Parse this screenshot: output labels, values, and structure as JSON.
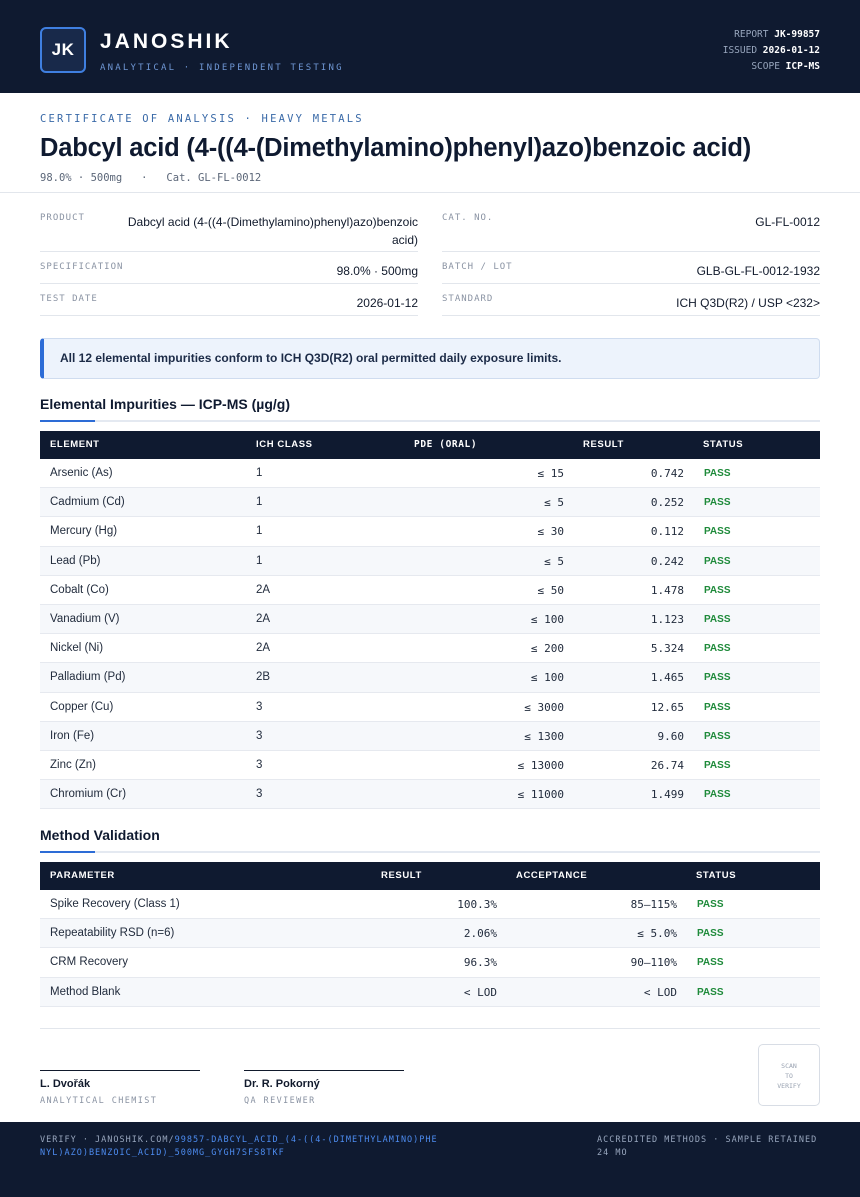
{
  "header": {
    "logo_text": "JK",
    "brand": "JANOSHIK",
    "tagline": "ANALYTICAL · INDEPENDENT TESTING",
    "meta": [
      {
        "label": "REPORT",
        "value": "JK-99857"
      },
      {
        "label": "ISSUED",
        "value": "2026-01-12"
      },
      {
        "label": "SCOPE",
        "value": "ICP-MS"
      }
    ]
  },
  "title_block": {
    "kicker": "CERTIFICATE OF ANALYSIS · HEAVY METALS",
    "title": "Dabcyl acid (4-((4-(Dimethylamino)phenyl)azo)benzoic acid)",
    "subtitle": "98.0% · 500mg   ·   Cat. GL-FL-0012"
  },
  "info": {
    "product": {
      "label": "PRODUCT",
      "value": "Dabcyl acid (4-((4-(Dimethylamino)phenyl)azo)benzoic acid)"
    },
    "cat_no": {
      "label": "CAT. NO.",
      "value": "GL-FL-0012"
    },
    "specification": {
      "label": "SPECIFICATION",
      "value": "98.0% · 500mg"
    },
    "batch": {
      "label": "BATCH / LOT",
      "value": "GLB-GL-FL-0012-1932"
    },
    "test_date": {
      "label": "TEST DATE",
      "value": "2026-01-12"
    },
    "standard": {
      "label": "STANDARD",
      "value": "ICH Q3D(R2) / USP <232>"
    }
  },
  "notice": "All 12 elemental impurities conform to ICH Q3D(R2) oral permitted daily exposure limits.",
  "impurities": {
    "title": "Elemental Impurities — ICP-MS (µg/g)",
    "headers": {
      "element": "ELEMENT",
      "ich_class": "ICH CLASS",
      "pde": "PDE (ORAL)",
      "result": "RESULT",
      "status": "STATUS"
    },
    "rows": [
      {
        "element": "Arsenic (As)",
        "ich_class": "1",
        "pde": "≤ 15",
        "result": "0.742",
        "status": "PASS"
      },
      {
        "element": "Cadmium (Cd)",
        "ich_class": "1",
        "pde": "≤ 5",
        "result": "0.252",
        "status": "PASS"
      },
      {
        "element": "Mercury (Hg)",
        "ich_class": "1",
        "pde": "≤ 30",
        "result": "0.112",
        "status": "PASS"
      },
      {
        "element": "Lead (Pb)",
        "ich_class": "1",
        "pde": "≤ 5",
        "result": "0.242",
        "status": "PASS"
      },
      {
        "element": "Cobalt (Co)",
        "ich_class": "2A",
        "pde": "≤ 50",
        "result": "1.478",
        "status": "PASS"
      },
      {
        "element": "Vanadium (V)",
        "ich_class": "2A",
        "pde": "≤ 100",
        "result": "1.123",
        "status": "PASS"
      },
      {
        "element": "Nickel (Ni)",
        "ich_class": "2A",
        "pde": "≤ 200",
        "result": "5.324",
        "status": "PASS"
      },
      {
        "element": "Palladium (Pd)",
        "ich_class": "2B",
        "pde": "≤ 100",
        "result": "1.465",
        "status": "PASS"
      },
      {
        "element": "Copper (Cu)",
        "ich_class": "3",
        "pde": "≤ 3000",
        "result": "12.65",
        "status": "PASS"
      },
      {
        "element": "Iron (Fe)",
        "ich_class": "3",
        "pde": "≤ 1300",
        "result": "9.60",
        "status": "PASS"
      },
      {
        "element": "Zinc (Zn)",
        "ich_class": "3",
        "pde": "≤ 13000",
        "result": "26.74",
        "status": "PASS"
      },
      {
        "element": "Chromium (Cr)",
        "ich_class": "3",
        "pde": "≤ 11000",
        "result": "1.499",
        "status": "PASS"
      }
    ]
  },
  "validation": {
    "title": "Method Validation",
    "headers": {
      "parameter": "PARAMETER",
      "result": "RESULT",
      "acceptance": "ACCEPTANCE",
      "status": "STATUS"
    },
    "rows": [
      {
        "parameter": "Spike Recovery (Class 1)",
        "result": "100.3%",
        "acceptance": "85–115%",
        "status": "PASS"
      },
      {
        "parameter": "Repeatability RSD (n=6)",
        "result": "2.06%",
        "acceptance": "≤ 5.0%",
        "status": "PASS"
      },
      {
        "parameter": "CRM Recovery",
        "result": "96.3%",
        "acceptance": "90–110%",
        "status": "PASS"
      },
      {
        "parameter": "Method Blank",
        "result": "< LOD",
        "acceptance": "< LOD",
        "status": "PASS"
      }
    ]
  },
  "signatures": [
    {
      "name": "L. Dvořák",
      "role": "ANALYTICAL CHEMIST"
    },
    {
      "name": "Dr. R. Pokorný",
      "role": "QA REVIEWER"
    }
  ],
  "qr": {
    "lines": [
      "SCAN",
      "TO",
      "VERIFY"
    ]
  },
  "footer": {
    "verify_prefix": "VERIFY · JANOSHIK.COM/",
    "verify_link": "99857-DABCYL_ACID_(4-((4-(DIMETHYLAMINO)PHENYL)AZO)BENZOIC_ACID)_500MG_GYGH7SFS8TKF",
    "accreditation": "ACCREDITED METHODS · SAMPLE RETAINED 24 MO"
  },
  "colors": {
    "navy": "#0f1a30",
    "accent": "#2d6cd6",
    "pass": "#1e8a3a"
  }
}
